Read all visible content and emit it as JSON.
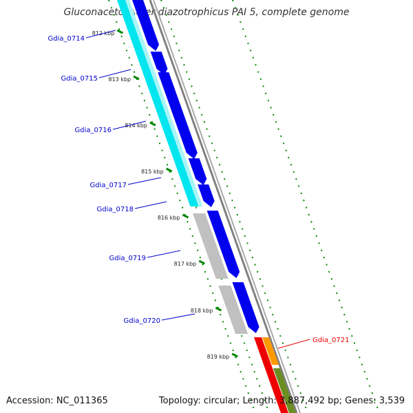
{
  "title": "Gluconacetobacter diazotrophicus PAI 5, complete genome",
  "footer": {
    "accession": "Accession: NC_011365",
    "topology": "Topology: circular; Length: 3,887,492 bp; Genes: 3,539"
  },
  "colors": {
    "cds_forward": "#0000ee",
    "ortholog_match": "#00e5ee",
    "no_match": "#c0c0c0",
    "rna_red": "#ee0000",
    "orange": "#ff9900",
    "olive": "#6b8e23",
    "backbone": "#808080",
    "tick_green": "#008800",
    "gene_label_blue": "#0000cc",
    "gene_label_red": "#ee0000"
  },
  "scale_ticks": [
    "812 kbp",
    "813 kbp",
    "814 kbp",
    "815 kbp",
    "816 kbp",
    "817 kbp",
    "818 kbp",
    "819 kbp"
  ],
  "genes": [
    {
      "name": "Gdia_0714",
      "color": "gene_label_blue"
    },
    {
      "name": "Gdia_0715",
      "color": "gene_label_blue"
    },
    {
      "name": "Gdia_0716",
      "color": "gene_label_blue"
    },
    {
      "name": "Gdia_0717",
      "color": "gene_label_blue"
    },
    {
      "name": "Gdia_0718",
      "color": "gene_label_blue"
    },
    {
      "name": "Gdia_0719",
      "color": "gene_label_blue"
    },
    {
      "name": "Gdia_0720",
      "color": "gene_label_blue"
    },
    {
      "name": "Gdia_0721",
      "color": "gene_label_red"
    }
  ]
}
